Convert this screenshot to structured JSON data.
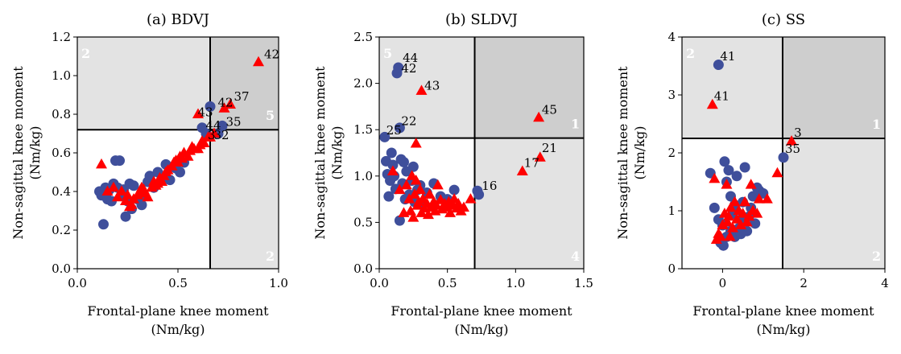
{
  "chart_data": [
    {
      "type": "scatter",
      "title": "(a) BDVJ",
      "xlabel": [
        "Frontal-plane knee moment",
        "(Nm/kg)"
      ],
      "ylabel": [
        "Non-sagittal knee moment",
        "(Nm/kg)"
      ],
      "xlim": [
        0,
        1.0
      ],
      "ylim": [
        0,
        1.2
      ],
      "xticks": [
        0,
        0.5,
        1.0
      ],
      "xtick_labels": [
        "0.0",
        "0.5",
        "1.0"
      ],
      "yticks": [
        0,
        0.2,
        0.4,
        0.6,
        0.8,
        1.0,
        1.2
      ],
      "ytick_labels": [
        "0.0",
        "0.2",
        "0.4",
        "0.6",
        "0.8",
        "1.0",
        "1.2"
      ],
      "threshold_x": 0.66,
      "threshold_y": 0.72,
      "quadrant_numbers": {
        "top_left": "2",
        "top_right": "5",
        "bottom_right": "2"
      },
      "series": [
        {
          "marker": "circle",
          "color": "#3f4f9b",
          "points": [
            [
              0.11,
              0.4
            ],
            [
              0.12,
              0.38
            ],
            [
              0.13,
              0.23
            ],
            [
              0.14,
              0.42
            ],
            [
              0.15,
              0.36
            ],
            [
              0.16,
              0.41
            ],
            [
              0.17,
              0.35
            ],
            [
              0.18,
              0.44
            ],
            [
              0.19,
              0.56
            ],
            [
              0.2,
              0.42
            ],
            [
              0.21,
              0.56
            ],
            [
              0.22,
              0.38
            ],
            [
              0.23,
              0.41
            ],
            [
              0.24,
              0.27
            ],
            [
              0.25,
              0.35
            ],
            [
              0.26,
              0.44
            ],
            [
              0.27,
              0.31
            ],
            [
              0.28,
              0.43
            ],
            [
              0.3,
              0.36
            ],
            [
              0.32,
              0.33
            ],
            [
              0.33,
              0.38
            ],
            [
              0.35,
              0.45
            ],
            [
              0.36,
              0.48
            ],
            [
              0.38,
              0.42
            ],
            [
              0.4,
              0.5
            ],
            [
              0.42,
              0.47
            ],
            [
              0.44,
              0.54
            ],
            [
              0.46,
              0.46
            ],
            [
              0.49,
              0.52
            ],
            [
              0.51,
              0.5
            ],
            [
              0.53,
              0.55
            ],
            [
              0.62,
              0.73
            ],
            [
              0.64,
              0.7
            ],
            [
              0.66,
              0.84
            ],
            [
              0.7,
              0.7
            ],
            [
              0.72,
              0.74
            ]
          ]
        },
        {
          "marker": "triangle",
          "color": "#ff0000",
          "points": [
            [
              0.12,
              0.54
            ],
            [
              0.15,
              0.4
            ],
            [
              0.18,
              0.42
            ],
            [
              0.2,
              0.37
            ],
            [
              0.22,
              0.4
            ],
            [
              0.24,
              0.35
            ],
            [
              0.25,
              0.38
            ],
            [
              0.26,
              0.32
            ],
            [
              0.27,
              0.33
            ],
            [
              0.28,
              0.36
            ],
            [
              0.3,
              0.38
            ],
            [
              0.31,
              0.4
            ],
            [
              0.32,
              0.42
            ],
            [
              0.33,
              0.41
            ],
            [
              0.34,
              0.39
            ],
            [
              0.35,
              0.37
            ],
            [
              0.37,
              0.42
            ],
            [
              0.38,
              0.45
            ],
            [
              0.39,
              0.43
            ],
            [
              0.4,
              0.44
            ],
            [
              0.41,
              0.47
            ],
            [
              0.42,
              0.45
            ],
            [
              0.43,
              0.48
            ],
            [
              0.44,
              0.5
            ],
            [
              0.45,
              0.51
            ],
            [
              0.47,
              0.53
            ],
            [
              0.48,
              0.55
            ],
            [
              0.49,
              0.56
            ],
            [
              0.5,
              0.55
            ],
            [
              0.51,
              0.58
            ],
            [
              0.52,
              0.57
            ],
            [
              0.53,
              0.6
            ],
            [
              0.55,
              0.58
            ],
            [
              0.56,
              0.61
            ],
            [
              0.57,
              0.63
            ],
            [
              0.58,
              0.62
            ],
            [
              0.6,
              0.62
            ],
            [
              0.61,
              0.64
            ],
            [
              0.62,
              0.66
            ],
            [
              0.63,
              0.65
            ],
            [
              0.65,
              0.68
            ],
            [
              0.66,
              0.68
            ],
            [
              0.68,
              0.7
            ],
            [
              0.6,
              0.8
            ],
            [
              0.73,
              0.83
            ],
            [
              0.76,
              0.85
            ],
            [
              0.9,
              1.07
            ]
          ]
        }
      ],
      "annotations": [
        {
          "text": "42",
          "x": 0.92,
          "y": 1.09
        },
        {
          "text": "42",
          "x": 0.69,
          "y": 0.84
        },
        {
          "text": "37",
          "x": 0.77,
          "y": 0.87
        },
        {
          "text": "43",
          "x": 0.59,
          "y": 0.79
        },
        {
          "text": "35",
          "x": 0.73,
          "y": 0.74
        },
        {
          "text": "44",
          "x": 0.63,
          "y": 0.72
        },
        {
          "text": "3",
          "x": 0.64,
          "y": 0.67
        },
        {
          "text": "32",
          "x": 0.67,
          "y": 0.67
        }
      ]
    },
    {
      "type": "scatter",
      "title": "(b) SLDVJ",
      "xlabel": [
        "Frontal-plane knee moment",
        "(Nm/kg)"
      ],
      "ylabel": [
        "Non-sagittal knee moment",
        "(Nm/kg)"
      ],
      "xlim": [
        0,
        1.5
      ],
      "ylim": [
        0,
        2.5
      ],
      "xticks": [
        0,
        0.5,
        1.0,
        1.5
      ],
      "xtick_labels": [
        "0.0",
        "0.5",
        "1.0",
        "1.5"
      ],
      "yticks": [
        0,
        0.5,
        1.0,
        1.5,
        2.0,
        2.5
      ],
      "ytick_labels": [
        "0.0",
        "0.5",
        "1.0",
        "1.5",
        "2.0",
        "2.5"
      ],
      "threshold_x": 0.7,
      "threshold_y": 1.41,
      "quadrant_numbers": {
        "top_left": "5",
        "top_right": "1",
        "bottom_right": "4"
      },
      "series": [
        {
          "marker": "circle",
          "color": "#3f4f9b",
          "points": [
            [
              0.04,
              1.42
            ],
            [
              0.05,
              1.16
            ],
            [
              0.06,
              1.02
            ],
            [
              0.07,
              0.78
            ],
            [
              0.08,
              0.95
            ],
            [
              0.09,
              1.25
            ],
            [
              0.1,
              1.12
            ],
            [
              0.11,
              1.0
            ],
            [
              0.12,
              0.86
            ],
            [
              0.13,
              2.11
            ],
            [
              0.14,
              2.17
            ],
            [
              0.15,
              1.52
            ],
            [
              0.15,
              0.52
            ],
            [
              0.16,
              1.18
            ],
            [
              0.17,
              0.92
            ],
            [
              0.18,
              1.15
            ],
            [
              0.19,
              0.75
            ],
            [
              0.2,
              1.05
            ],
            [
              0.22,
              0.8
            ],
            [
              0.24,
              0.95
            ],
            [
              0.25,
              1.1
            ],
            [
              0.26,
              0.72
            ],
            [
              0.28,
              0.85
            ],
            [
              0.3,
              0.9
            ],
            [
              0.32,
              0.7
            ],
            [
              0.35,
              0.82
            ],
            [
              0.4,
              0.92
            ],
            [
              0.45,
              0.78
            ],
            [
              0.5,
              0.75
            ],
            [
              0.55,
              0.85
            ],
            [
              0.72,
              0.84
            ],
            [
              0.73,
              0.8
            ]
          ]
        },
        {
          "marker": "triangle",
          "color": "#ff0000",
          "points": [
            [
              0.1,
              1.05
            ],
            [
              0.15,
              0.85
            ],
            [
              0.18,
              0.6
            ],
            [
              0.2,
              0.9
            ],
            [
              0.22,
              0.75
            ],
            [
              0.23,
              0.62
            ],
            [
              0.24,
              1.0
            ],
            [
              0.25,
              0.55
            ],
            [
              0.26,
              0.8
            ],
            [
              0.27,
              0.95
            ],
            [
              0.28,
              0.68
            ],
            [
              0.29,
              0.72
            ],
            [
              0.3,
              0.85
            ],
            [
              0.31,
              0.6
            ],
            [
              0.32,
              0.75
            ],
            [
              0.33,
              0.65
            ],
            [
              0.35,
              0.7
            ],
            [
              0.36,
              0.58
            ],
            [
              0.37,
              0.8
            ],
            [
              0.38,
              0.66
            ],
            [
              0.4,
              0.72
            ],
            [
              0.41,
              0.62
            ],
            [
              0.42,
              0.68
            ],
            [
              0.43,
              0.9
            ],
            [
              0.45,
              0.74
            ],
            [
              0.46,
              0.64
            ],
            [
              0.48,
              0.7
            ],
            [
              0.5,
              0.66
            ],
            [
              0.51,
              0.72
            ],
            [
              0.52,
              0.6
            ],
            [
              0.54,
              0.68
            ],
            [
              0.55,
              0.75
            ],
            [
              0.57,
              0.65
            ],
            [
              0.58,
              0.7
            ],
            [
              0.6,
              0.62
            ],
            [
              0.62,
              0.66
            ],
            [
              0.27,
              1.35
            ],
            [
              0.31,
              1.92
            ],
            [
              1.05,
              1.05
            ],
            [
              1.18,
              1.2
            ],
            [
              1.17,
              1.63
            ],
            [
              0.67,
              0.75
            ]
          ]
        }
      ],
      "annotations": [
        {
          "text": "44",
          "x": 0.16,
          "y": 2.23
        },
        {
          "text": "42",
          "x": 0.15,
          "y": 2.12
        },
        {
          "text": "43",
          "x": 0.32,
          "y": 1.93
        },
        {
          "text": "45",
          "x": 1.18,
          "y": 1.67
        },
        {
          "text": "22",
          "x": 0.15,
          "y": 1.55
        },
        {
          "text": "25",
          "x": 0.04,
          "y": 1.45
        },
        {
          "text": "21",
          "x": 1.18,
          "y": 1.26
        },
        {
          "text": "17",
          "x": 1.05,
          "y": 1.1
        },
        {
          "text": "16",
          "x": 0.74,
          "y": 0.85
        }
      ]
    },
    {
      "type": "scatter",
      "title": "(c) SS",
      "xlabel": [
        "Frontal-plane knee moment",
        "(Nm/kg)"
      ],
      "ylabel": [
        "Non-sagittal knee moment",
        "(Nm/kg)"
      ],
      "xlim": [
        -1,
        4
      ],
      "ylim": [
        0,
        4
      ],
      "xticks": [
        0,
        2,
        4
      ],
      "xtick_labels": [
        "0",
        "2",
        "4"
      ],
      "yticks": [
        0,
        1,
        2,
        3,
        4
      ],
      "ytick_labels": [
        "0",
        "1",
        "2",
        "3",
        "4"
      ],
      "threshold_x": 1.48,
      "threshold_y": 2.25,
      "quadrant_numbers": {
        "top_left": "2",
        "top_right": "1",
        "bottom_right": "2"
      },
      "series": [
        {
          "marker": "circle",
          "color": "#3f4f9b",
          "points": [
            [
              -0.1,
              3.52
            ],
            [
              1.5,
              1.92
            ],
            [
              -0.3,
              1.65
            ],
            [
              -0.2,
              1.05
            ],
            [
              -0.1,
              0.85
            ],
            [
              0.0,
              0.75
            ],
            [
              0.05,
              1.85
            ],
            [
              0.1,
              1.5
            ],
            [
              0.15,
              1.7
            ],
            [
              0.2,
              1.25
            ],
            [
              0.25,
              0.95
            ],
            [
              0.3,
              1.1
            ],
            [
              0.35,
              1.6
            ],
            [
              0.4,
              0.7
            ],
            [
              0.45,
              0.85
            ],
            [
              0.5,
              1.15
            ],
            [
              0.55,
              1.75
            ],
            [
              0.6,
              0.65
            ],
            [
              0.65,
              0.9
            ],
            [
              0.7,
              1.05
            ],
            [
              0.75,
              1.25
            ],
            [
              0.8,
              0.78
            ],
            [
              0.85,
              1.4
            ],
            [
              0.9,
              1.35
            ],
            [
              1.0,
              1.3
            ],
            [
              -0.05,
              0.45
            ],
            [
              0.02,
              0.4
            ],
            [
              0.1,
              0.55
            ],
            [
              0.3,
              0.55
            ],
            [
              0.2,
              0.65
            ],
            [
              0.45,
              0.6
            ]
          ]
        },
        {
          "marker": "triangle",
          "color": "#ff0000",
          "points": [
            [
              -0.25,
              2.83
            ],
            [
              1.7,
              2.2
            ],
            [
              -0.2,
              1.55
            ],
            [
              -0.15,
              0.5
            ],
            [
              -0.1,
              0.6
            ],
            [
              0.0,
              0.75
            ],
            [
              0.05,
              0.95
            ],
            [
              0.1,
              1.45
            ],
            [
              0.12,
              0.8
            ],
            [
              0.15,
              0.9
            ],
            [
              0.2,
              1.05
            ],
            [
              0.25,
              0.7
            ],
            [
              0.3,
              1.15
            ],
            [
              0.35,
              0.85
            ],
            [
              0.4,
              1.0
            ],
            [
              0.45,
              0.75
            ],
            [
              0.5,
              0.95
            ],
            [
              0.55,
              1.15
            ],
            [
              0.6,
              0.8
            ],
            [
              0.65,
              0.9
            ],
            [
              0.7,
              1.45
            ],
            [
              0.75,
              1.0
            ],
            [
              0.85,
              0.95
            ],
            [
              0.9,
              1.2
            ],
            [
              1.1,
              1.2
            ],
            [
              1.35,
              1.65
            ],
            [
              -0.05,
              0.55
            ],
            [
              0.18,
              0.55
            ]
          ]
        }
      ],
      "annotations": [
        {
          "text": "41",
          "x": -0.1,
          "y": 3.6
        },
        {
          "text": "41",
          "x": -0.25,
          "y": 2.91
        },
        {
          "text": "3",
          "x": 1.72,
          "y": 2.28
        },
        {
          "text": "35",
          "x": 1.5,
          "y": 2.0
        }
      ]
    }
  ],
  "colors": {
    "quad_light": "#e3e3e3",
    "quad_dark": "#cecece",
    "circle": "#3f4f9b",
    "triangle": "#ff0000"
  }
}
